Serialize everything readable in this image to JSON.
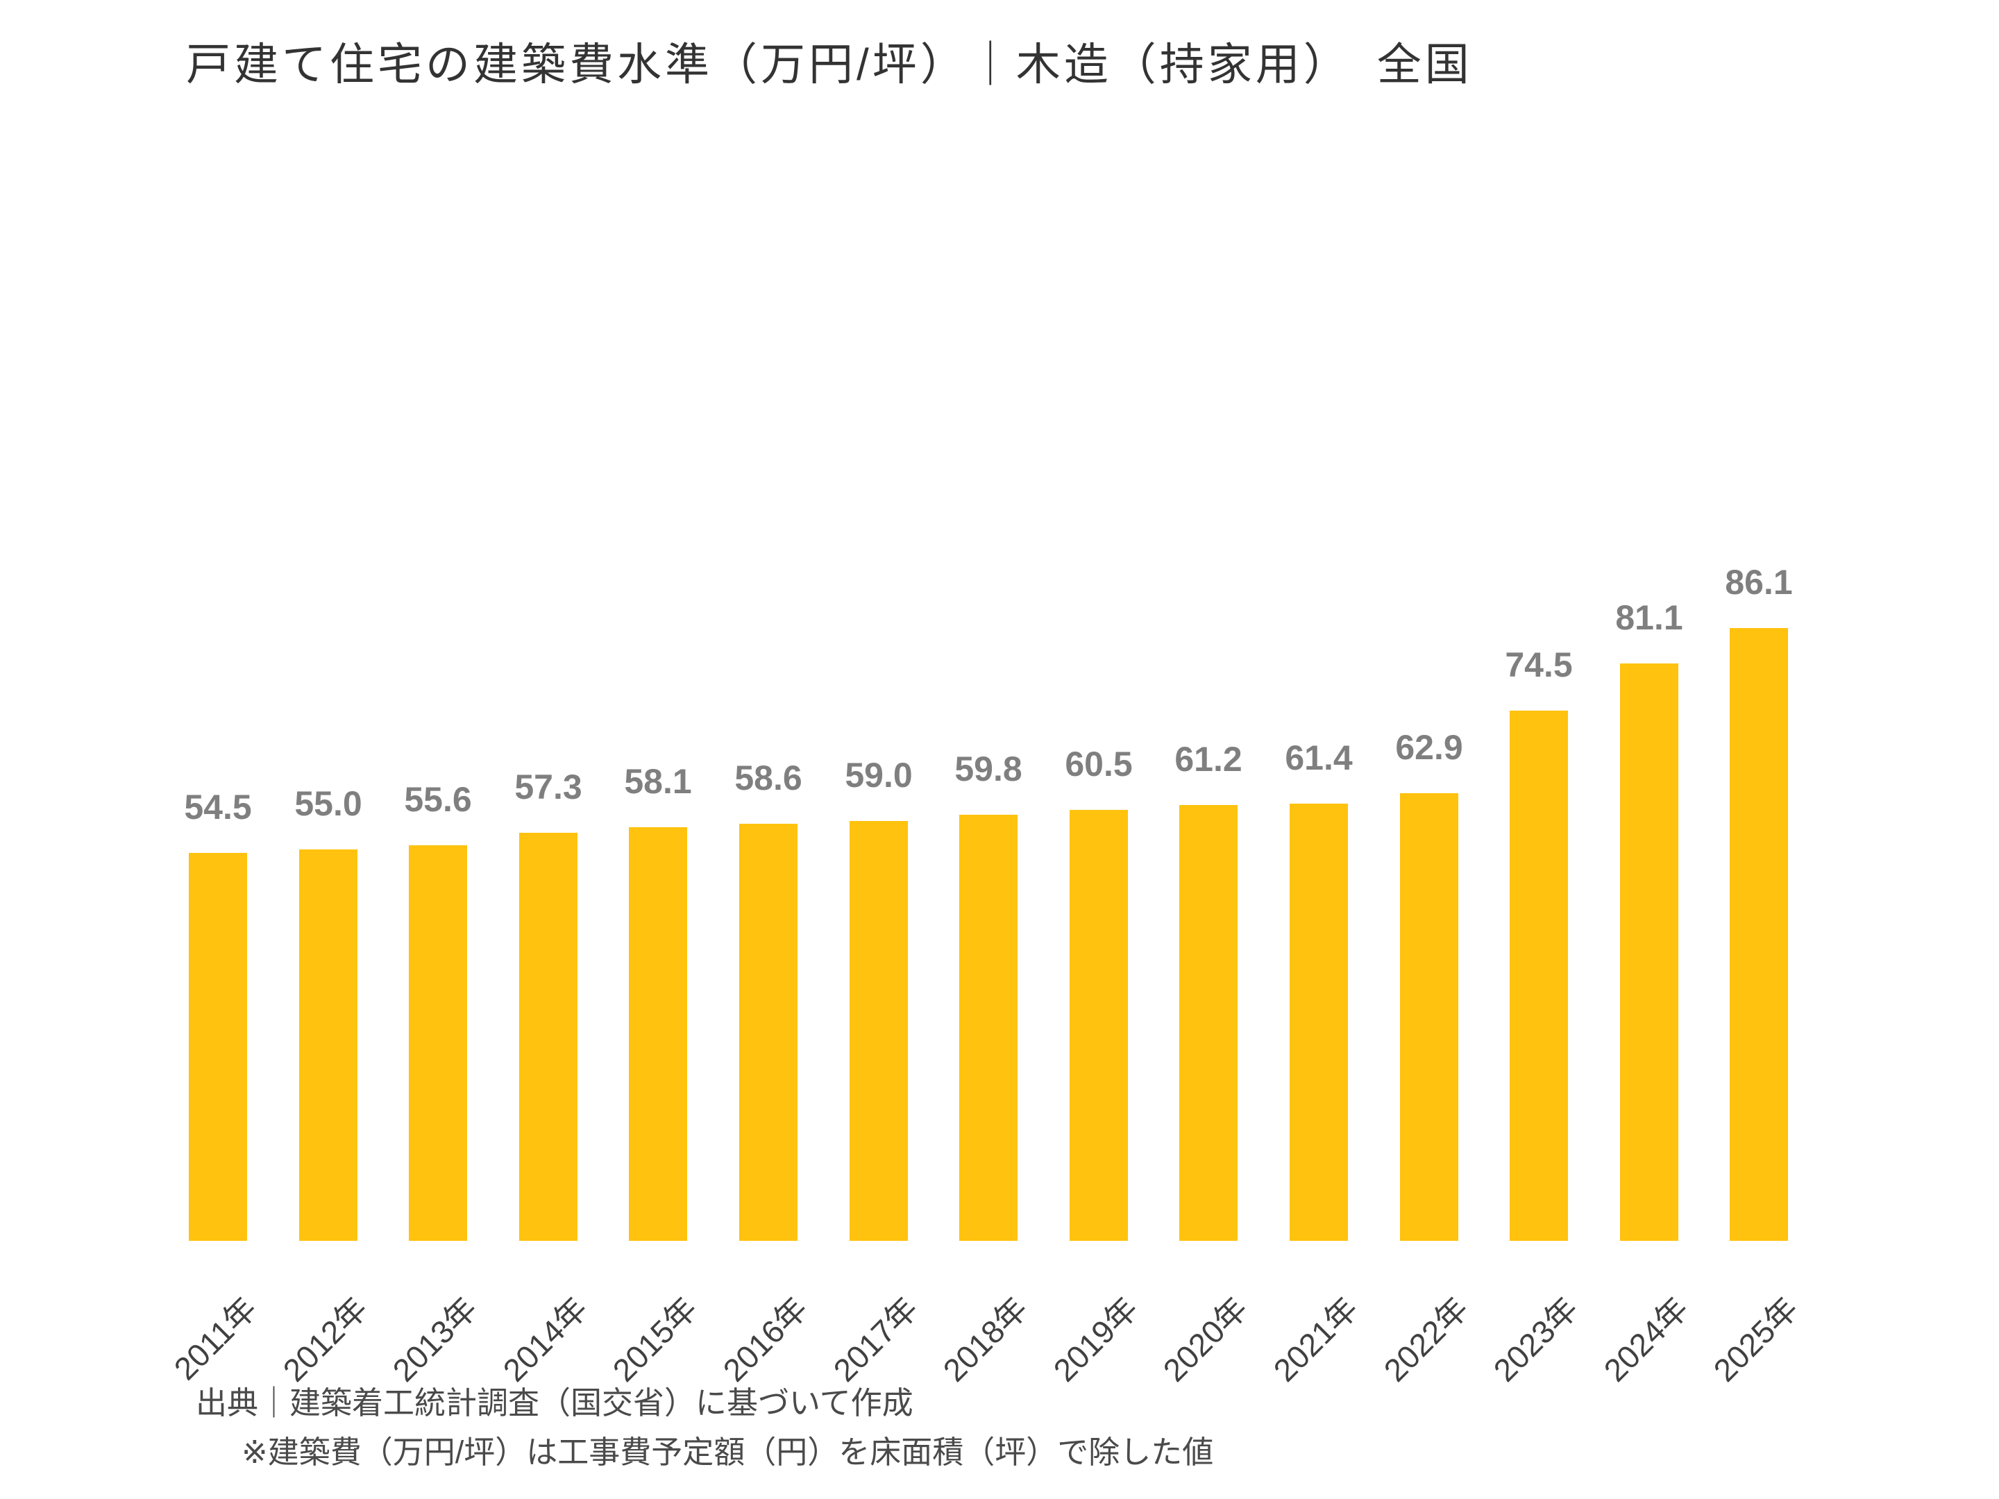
{
  "title": "戸建て住宅の建築費水準（万円/坪）｜木造（持家用）　全国",
  "notes": {
    "source": "出典｜建築着工統計調査（国交省）に基づいて作成",
    "calculation": "※建築費（万円/坪）は工事費予定額（円）を床面積（坪）で除した値"
  },
  "colors": {
    "bar": "#FFC20E",
    "value_label": "#7F7F7F",
    "title_text": "#333333",
    "axis_label": "#404040",
    "note_text": "#4A4A4A",
    "background": "#FFFFFF"
  },
  "chart_data": {
    "type": "bar",
    "title": "戸建て住宅の建築費水準（万円/坪）｜木造（持家用）　全国",
    "categories": [
      "2011年",
      "2012年",
      "2013年",
      "2014年",
      "2015年",
      "2016年",
      "2017年",
      "2018年",
      "2019年",
      "2020年",
      "2021年",
      "2022年",
      "2023年",
      "2024年",
      "2025年"
    ],
    "values": [
      54.5,
      55.0,
      55.6,
      57.3,
      58.1,
      58.6,
      59.0,
      59.8,
      60.5,
      61.2,
      61.4,
      62.9,
      74.5,
      81.1,
      86.1
    ],
    "xlabel": "",
    "ylabel": "",
    "unit": "万円/坪",
    "ylim": [
      0,
      95
    ],
    "grid": false,
    "legend": "none",
    "data_labels": true,
    "value_label_format": "one_decimal",
    "x_tick_rotation_deg": 45
  }
}
